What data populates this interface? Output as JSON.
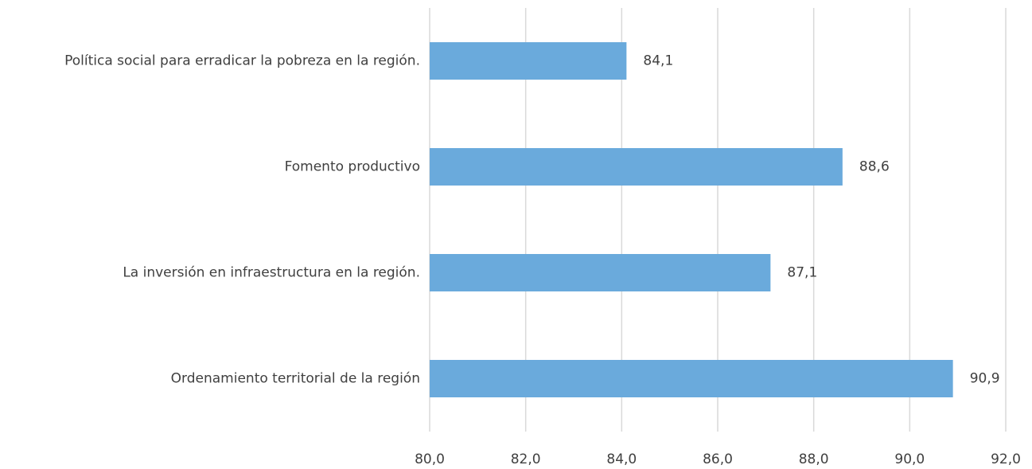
{
  "chart_data": {
    "type": "bar",
    "orientation": "horizontal",
    "categories": [
      "Política social para erradicar la pobreza en la región.",
      "Fomento productivo",
      "La inversión en infraestructura en la región.",
      "Ordenamiento territorial de la región"
    ],
    "values": [
      84.1,
      88.6,
      87.1,
      90.9
    ],
    "value_labels": [
      "84,1",
      "88,6",
      "87,1",
      "90,9"
    ],
    "color": "#6aaadc",
    "xlim": [
      80,
      92
    ],
    "xticks": [
      {
        "value": 80,
        "label": "80,0"
      },
      {
        "value": 82,
        "label": "82,0"
      },
      {
        "value": 84,
        "label": "84,0"
      },
      {
        "value": 86,
        "label": "86,0"
      },
      {
        "value": 88,
        "label": "88,0"
      },
      {
        "value": 90,
        "label": "90,0"
      },
      {
        "value": 92,
        "label": "92,0"
      }
    ],
    "grid": true
  }
}
